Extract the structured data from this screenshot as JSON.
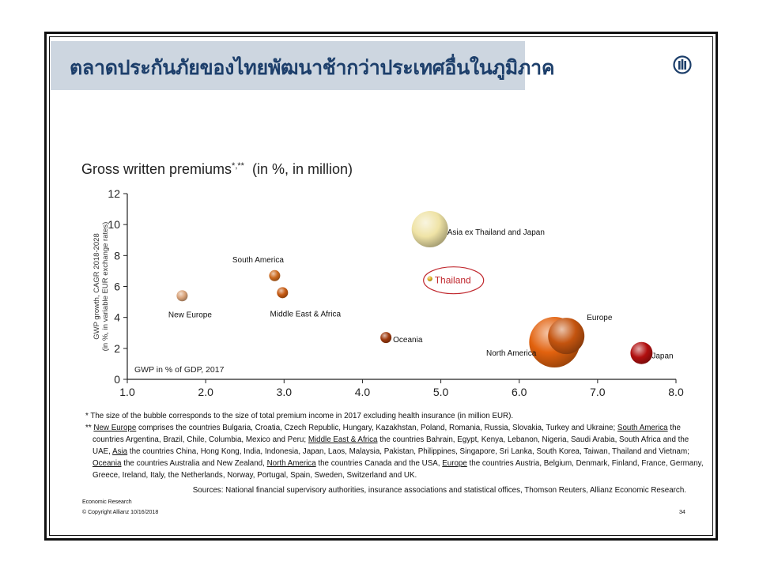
{
  "page": {
    "title": "ตลาดประกันภัยของไทยพัฒนาช้ากว่าประเทศอื่นในภูมิภาค",
    "logo_icon": "allianz-eagle-icon"
  },
  "chart_data": {
    "type": "scatter",
    "title": "Gross written premiums",
    "title_marks": "*,**",
    "title_units": "(in %, in million)",
    "xlabel": "GWP in % of GDP, 2017",
    "ylabel_line1": "GWP growth, CAGR 2018-2028",
    "ylabel_line2": "(in %, in variable EUR exchange rates)",
    "xlim": [
      1.0,
      8.0
    ],
    "ylim": [
      0,
      12
    ],
    "x_ticks": [
      "1.0",
      "2.0",
      "3.0",
      "4.0",
      "5.0",
      "6.0",
      "7.0",
      "8.0"
    ],
    "y_ticks": [
      "0",
      "2",
      "4",
      "6",
      "8",
      "10",
      "12"
    ],
    "grid": false,
    "points": [
      {
        "label": "New Europe",
        "x": 1.7,
        "y": 5.4,
        "size": "small",
        "color": "#d9a37a"
      },
      {
        "label": "South America",
        "x": 2.88,
        "y": 6.7,
        "size": "small",
        "color": "#cc6a1e"
      },
      {
        "label": "Middle East & Africa",
        "x": 2.98,
        "y": 5.6,
        "size": "small",
        "color": "#c65a12"
      },
      {
        "label": "Asia ex Thailand and Japan",
        "x": 4.86,
        "y": 9.7,
        "size": "large",
        "color": "#efe3a6"
      },
      {
        "label": "Thailand",
        "x": 4.86,
        "y": 6.5,
        "size": "tiny",
        "color": "#e0b020"
      },
      {
        "label": "Oceania",
        "x": 4.3,
        "y": 2.7,
        "size": "small",
        "color": "#9e3a0e"
      },
      {
        "label": "Europe",
        "x": 6.6,
        "y": 2.8,
        "size": "large",
        "color": "#c4540f"
      },
      {
        "label": "North America",
        "x": 6.45,
        "y": 2.4,
        "size": "largest",
        "color": "#e2620e"
      },
      {
        "label": "Japan",
        "x": 7.56,
        "y": 1.7,
        "size": "medium",
        "color": "#b10f0f"
      }
    ],
    "highlight": "Thailand",
    "highlight_color": "#c0272d"
  },
  "footnotes": {
    "note1": "*  The size of the bubble corresponds to the size of total premium income in 2017 excluding health insurance (in million EUR).",
    "note2_marks": "**",
    "note2_segments": [
      {
        "text": "New Europe",
        "u": true
      },
      {
        "text": " comprises the countries Bulgaria, Croatia, Czech Republic, Hungary, Kazakhstan, Poland, Romania, Russia, Slovakia, Turkey and Ukraine; ",
        "u": false
      },
      {
        "text": "South America",
        "u": true
      },
      {
        "text": " the",
        "u": false
      }
    ],
    "note2_line2": [
      {
        "text": "countries Argentina, Brazil, Chile, Columbia, Mexico and Peru; ",
        "u": false
      },
      {
        "text": "Middle East & Africa",
        "u": true
      },
      {
        "text": " the countries Bahrain, Egypt, Kenya, Lebanon, Nigeria, Saudi Arabia, South Africa and the",
        "u": false
      }
    ],
    "note2_line3": [
      {
        "text": "UAE, ",
        "u": false
      },
      {
        "text": "Asia",
        "u": true
      },
      {
        "text": " the countries China, Hong Kong, India, Indonesia, Japan, Laos, Malaysia, Pakistan, Philippines, Singapore, Sri Lanka, South Korea, Taiwan, Thailand and Vietnam;",
        "u": false
      }
    ],
    "note2_line4": [
      {
        "text": "Oceania",
        "u": true
      },
      {
        "text": " the countries Australia and New Zealand, ",
        "u": false
      },
      {
        "text": "North America",
        "u": true
      },
      {
        "text": " the countries Canada and the USA, ",
        "u": false
      },
      {
        "text": "Europe",
        "u": true
      },
      {
        "text": " the countries Austria, Belgium, Denmark, Finland, France, Germany,",
        "u": false
      }
    ],
    "note2_line5": [
      {
        "text": "Greece, Ireland, Italy, the Netherlands, Norway, Portugal, Spain, Sweden, Switzerland and UK.",
        "u": false
      }
    ],
    "sources": "Sources: National financial supervisory authorities, insurance associations and statistical offices, Thomson Reuters, Allianz Economic Research."
  },
  "footer": {
    "department": "Economic Research",
    "copyright": "© Copyright Allianz  10/16/2018",
    "page_number": "34"
  }
}
